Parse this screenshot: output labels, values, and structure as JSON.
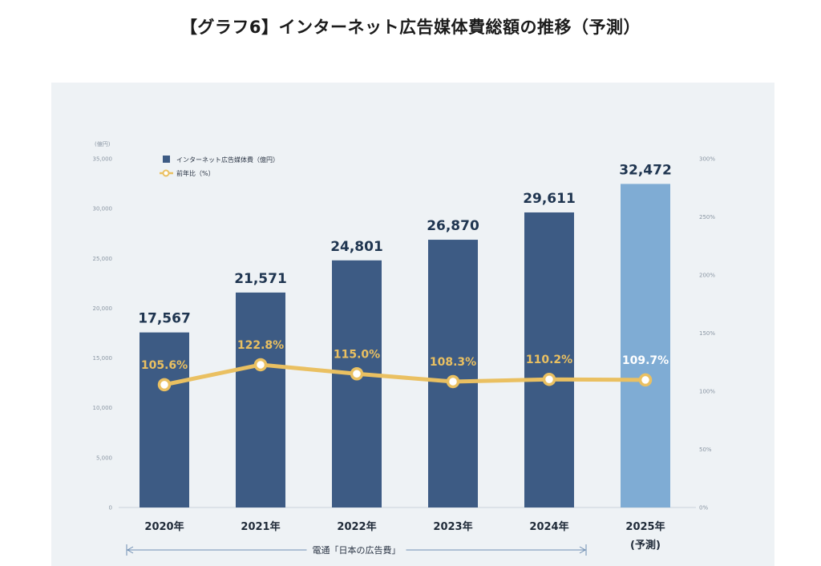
{
  "page": {
    "title": "【グラフ6】インターネット広告媒体費総額の推移（予測）"
  },
  "chart_data": {
    "type": "bar",
    "title": "【グラフ6】インターネット広告媒体費総額の推移（予測）",
    "categories": [
      "2020年",
      "2021年",
      "2022年",
      "2023年",
      "2024年",
      "2025年"
    ],
    "category_sublabels": [
      "",
      "",
      "",
      "",
      "",
      "(予測)"
    ],
    "series": [
      {
        "name": "インターネット広告媒体費（億円）",
        "type": "bar",
        "values": [
          17567,
          21571,
          24801,
          26870,
          29611,
          32472
        ],
        "labels": [
          "17,567",
          "21,571",
          "24,801",
          "26,870",
          "29,611",
          "32,472"
        ],
        "axis": "left"
      },
      {
        "name": "前年比（%）",
        "type": "line",
        "values": [
          105.6,
          122.8,
          115.0,
          108.3,
          110.2,
          109.7
        ],
        "labels": [
          "105.6%",
          "122.8%",
          "115.0%",
          "108.3%",
          "110.2%",
          "109.7%"
        ],
        "axis": "right"
      }
    ],
    "left_axis": {
      "unit": "(億円)",
      "ylim": [
        0,
        35000
      ],
      "ticks": [
        0,
        5000,
        10000,
        15000,
        20000,
        25000,
        30000,
        35000
      ],
      "tick_labels": [
        "0",
        "5,000",
        "10,000",
        "15,000",
        "20,000",
        "25,000",
        "30,000",
        "35,000"
      ]
    },
    "right_axis": {
      "ylim": [
        0,
        300
      ],
      "ticks": [
        0,
        50,
        100,
        150,
        200,
        250,
        300
      ],
      "tick_labels": [
        "0%",
        "50%",
        "100%",
        "150%",
        "200%",
        "250%",
        "300%"
      ]
    },
    "legend": {
      "position": "top-left",
      "items": [
        "インターネット広告媒体費（億円）",
        "前年比（%）"
      ]
    },
    "annotation": "電通「日本の広告費」",
    "colors": {
      "bar": "#3d5b84",
      "bar_forecast": "#7facd4",
      "line": "#eac061",
      "panel": "#eef2f5"
    }
  }
}
